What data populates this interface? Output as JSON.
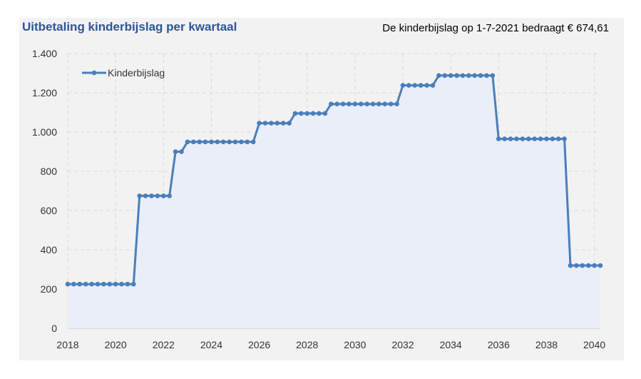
{
  "header": {
    "title": "Uitbetaling kinderbijslag per kwartaal",
    "note": "De kinderbijslag op 1-7-2021 bedraagt € 674,61"
  },
  "colors": {
    "line": "#4a7ebb",
    "fill": "#e9eef8",
    "title": "#2e5597",
    "grid": "#d9d9d9"
  },
  "chart_data": {
    "type": "line",
    "title": "Uitbetaling kinderbijslag per kwartaal",
    "xlabel": "",
    "ylabel": "",
    "xlim": [
      2018,
      2040.25
    ],
    "ylim": [
      0,
      1400
    ],
    "x_ticks": [
      2018,
      2020,
      2022,
      2024,
      2026,
      2028,
      2030,
      2032,
      2034,
      2036,
      2038,
      2040
    ],
    "y_ticks": [
      0,
      200,
      400,
      600,
      800,
      1000,
      1200,
      1400
    ],
    "y_tick_labels": [
      "0",
      "200",
      "400",
      "600",
      "800",
      "1.000",
      "1.200",
      "1.400"
    ],
    "grid": true,
    "legend": "top-left",
    "series": [
      {
        "name": "Kinderbijslag",
        "x": [
          2018,
          2018.25,
          2018.5,
          2018.75,
          2019,
          2019.25,
          2019.5,
          2019.75,
          2020,
          2020.25,
          2020.5,
          2020.75,
          2021,
          2021.25,
          2021.5,
          2021.75,
          2022,
          2022.25,
          2022.5,
          2022.75,
          2023,
          2023.25,
          2023.5,
          2023.75,
          2024,
          2024.25,
          2024.5,
          2024.75,
          2025,
          2025.25,
          2025.5,
          2025.75,
          2026,
          2026.25,
          2026.5,
          2026.75,
          2027,
          2027.25,
          2027.5,
          2027.75,
          2028,
          2028.25,
          2028.5,
          2028.75,
          2029,
          2029.25,
          2029.5,
          2029.75,
          2030,
          2030.25,
          2030.5,
          2030.75,
          2031,
          2031.25,
          2031.5,
          2031.75,
          2032,
          2032.25,
          2032.5,
          2032.75,
          2033,
          2033.25,
          2033.5,
          2033.75,
          2034,
          2034.25,
          2034.5,
          2034.75,
          2035,
          2035.25,
          2035.5,
          2035.75,
          2036,
          2036.25,
          2036.5,
          2036.75,
          2037,
          2037.25,
          2037.5,
          2037.75,
          2038,
          2038.25,
          2038.5,
          2038.75,
          2039,
          2039.25,
          2039.5,
          2039.75,
          2040,
          2040.25
        ],
        "values": [
          225,
          225,
          225,
          225,
          225,
          225,
          225,
          225,
          225,
          225,
          225,
          225,
          675,
          675,
          675,
          675,
          675,
          675,
          900,
          900,
          950,
          950,
          950,
          950,
          950,
          950,
          950,
          950,
          950,
          950,
          950,
          950,
          1045,
          1045,
          1045,
          1045,
          1045,
          1045,
          1095,
          1095,
          1095,
          1095,
          1095,
          1095,
          1143,
          1143,
          1143,
          1143,
          1143,
          1143,
          1143,
          1143,
          1143,
          1143,
          1143,
          1143,
          1238,
          1238,
          1238,
          1238,
          1238,
          1238,
          1288,
          1288,
          1288,
          1288,
          1288,
          1288,
          1288,
          1288,
          1288,
          1288,
          965,
          965,
          965,
          965,
          965,
          965,
          965,
          965,
          965,
          965,
          965,
          965,
          320,
          320,
          320,
          320,
          320,
          320
        ]
      }
    ]
  }
}
